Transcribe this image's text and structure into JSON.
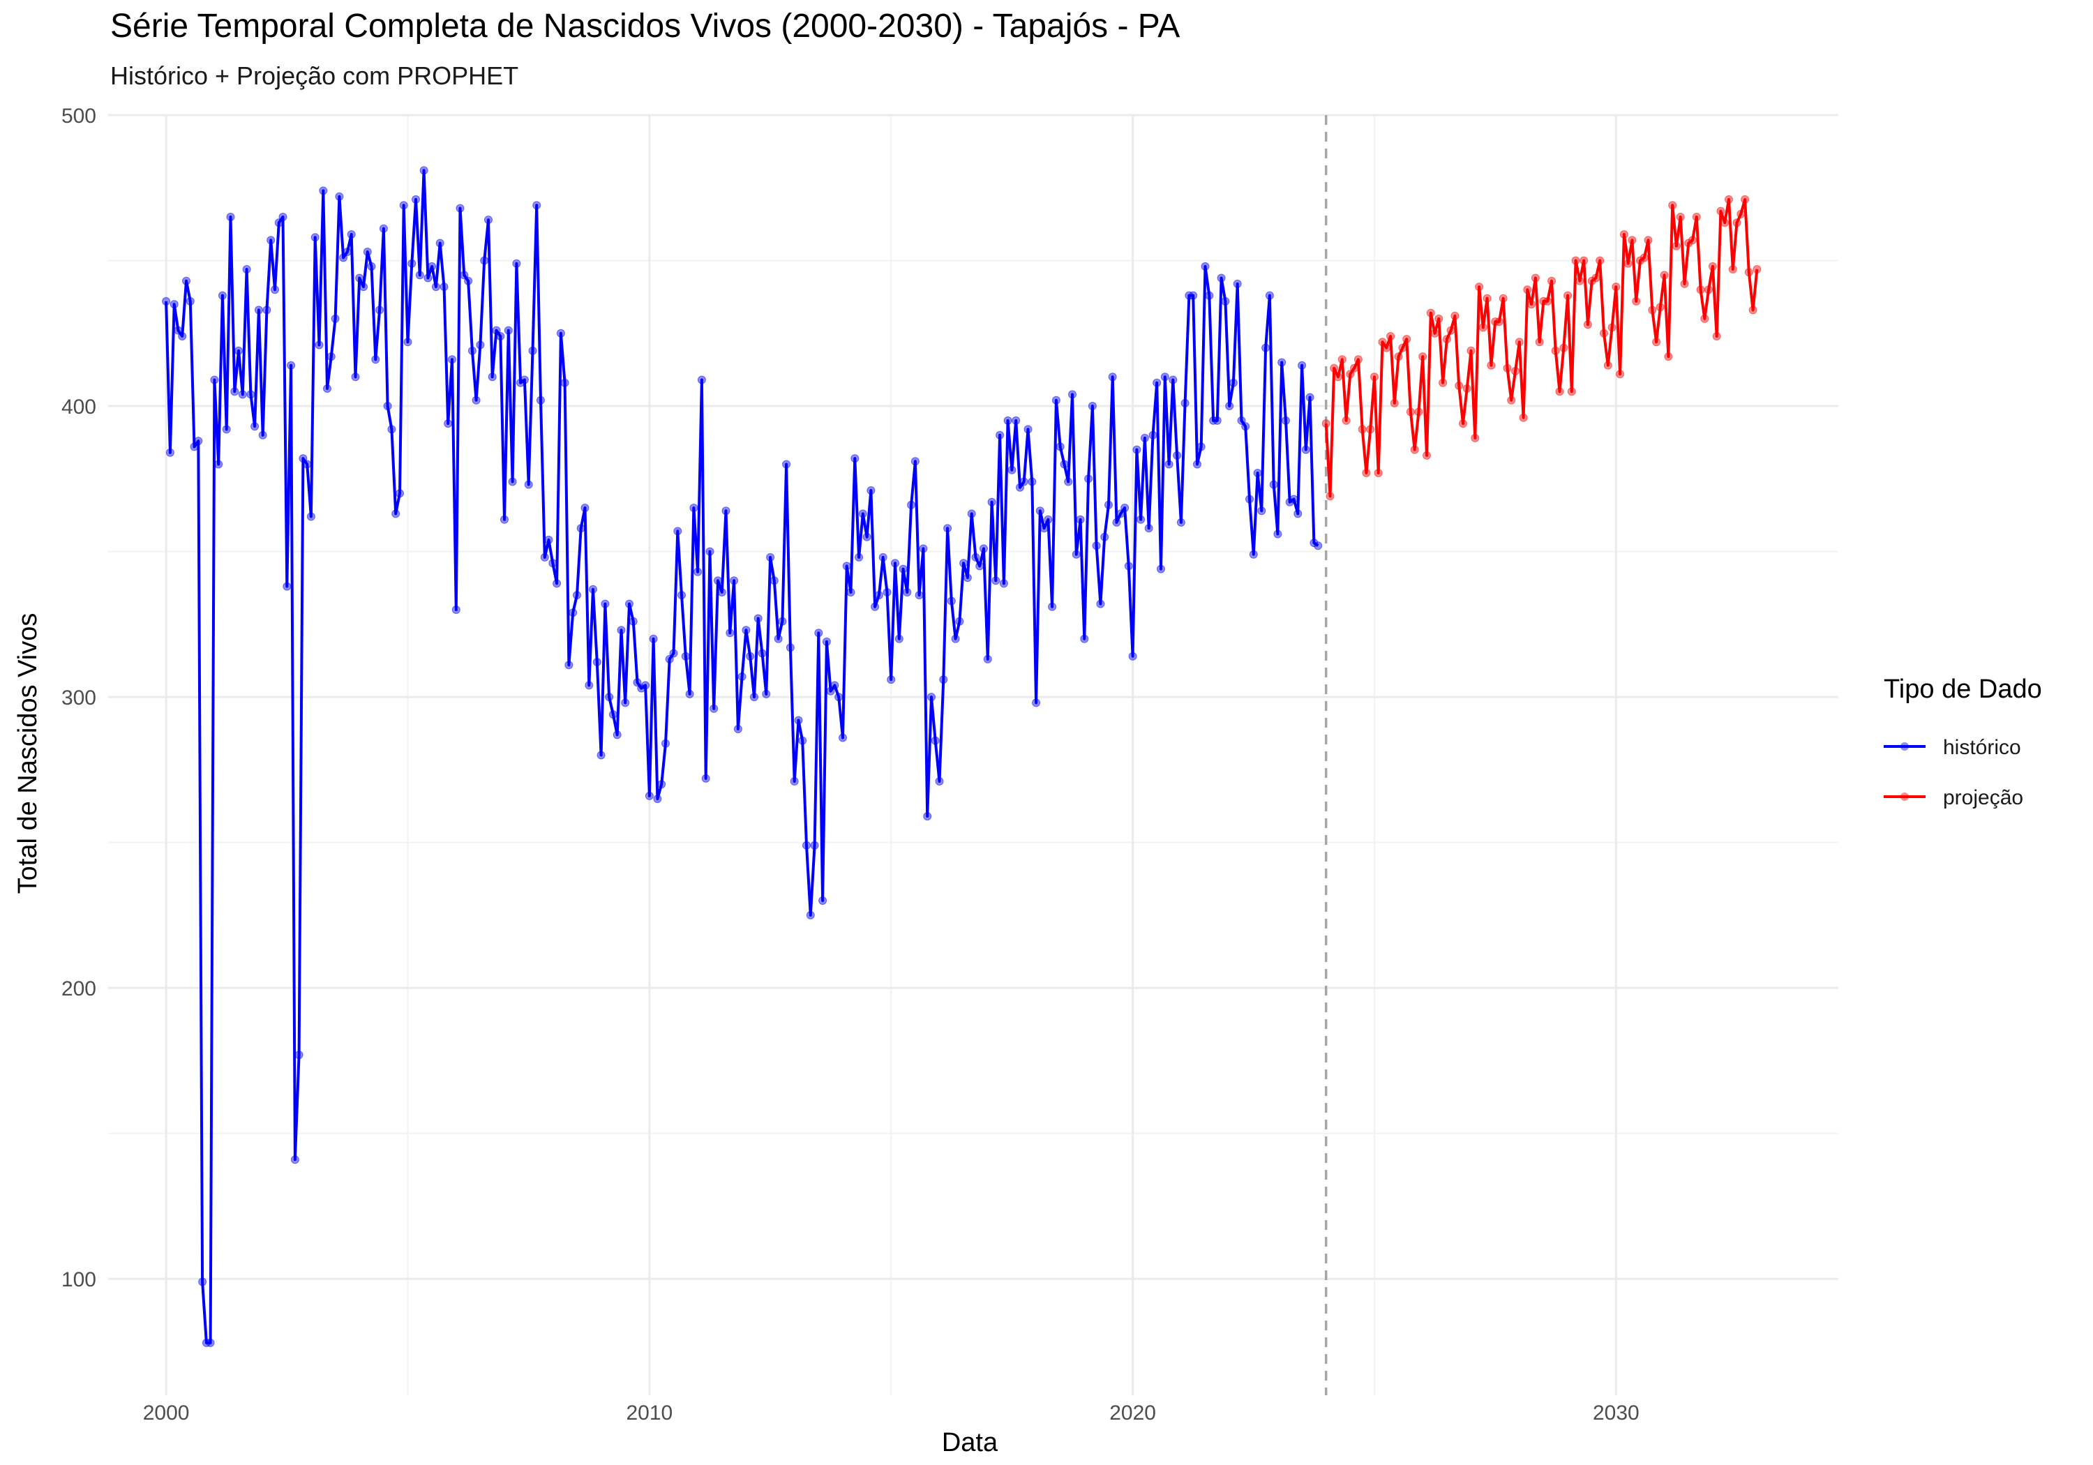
{
  "chart_data": {
    "type": "line",
    "title": "Série Temporal Completa de Nascidos Vivos (2000-2030) -  Tapajós - PA",
    "subtitle": "Histórico + Projeção com PROPHET",
    "xlabel": "Data",
    "ylabel": "Total de Nascidos Vivos",
    "xlim": [
      1998.8,
      2034.6
    ],
    "ylim": [
      60,
      500
    ],
    "x_ticks": [
      2000,
      2010,
      2020,
      2030
    ],
    "y_ticks": [
      100,
      200,
      300,
      400,
      500
    ],
    "grid": true,
    "vline": 2024,
    "legend": {
      "title": "Tipo de Dado",
      "position": "right",
      "items": [
        {
          "label": "histórico",
          "color": "#0000ff"
        },
        {
          "label": "projeção",
          "color": "#ff0000"
        }
      ]
    },
    "series": [
      {
        "name": "histórico",
        "color": "#0000ff",
        "start": "2000-01",
        "values": [
          436,
          384,
          435,
          426,
          424,
          443,
          436,
          386,
          388,
          99,
          78,
          78,
          409,
          380,
          438,
          392,
          465,
          405,
          419,
          404,
          447,
          404,
          393,
          433,
          390,
          433,
          457,
          440,
          463,
          465,
          338,
          414,
          141,
          177,
          382,
          380,
          362,
          458,
          421,
          474,
          406,
          417,
          430,
          472,
          451,
          453,
          459,
          410,
          444,
          441,
          453,
          448,
          416,
          433,
          461,
          400,
          392,
          363,
          370,
          469,
          422,
          449,
          471,
          445,
          481,
          444,
          448,
          441,
          456,
          441,
          394,
          416,
          330,
          468,
          445,
          443,
          419,
          402,
          421,
          450,
          464,
          410,
          426,
          424,
          361,
          426,
          374,
          449,
          408,
          409,
          373,
          419,
          469,
          402,
          348,
          354,
          346,
          339,
          425,
          408,
          311,
          329,
          335,
          358,
          365,
          304,
          337,
          312,
          280,
          332,
          300,
          294,
          287,
          323,
          298,
          332,
          326,
          305,
          303,
          304,
          266,
          320,
          265,
          270,
          284,
          313,
          315,
          357,
          335,
          314,
          301,
          365,
          343,
          409,
          272,
          350,
          296,
          340,
          336,
          364,
          322,
          340,
          289,
          307,
          323,
          314,
          300,
          327,
          315,
          301,
          348,
          340,
          320,
          326,
          380,
          317,
          271,
          292,
          285,
          249,
          225,
          249,
          322,
          230,
          319,
          302,
          304,
          300,
          286,
          345,
          336,
          382,
          348,
          363,
          355,
          371,
          331,
          335,
          348,
          336,
          306,
          346,
          320,
          344,
          336,
          366,
          381,
          335,
          351,
          259,
          300,
          285,
          271,
          306,
          358,
          333,
          320,
          326,
          346,
          341,
          363,
          348,
          345,
          351,
          313,
          367,
          340,
          390,
          339,
          395,
          378,
          395,
          372,
          374,
          392,
          374,
          298,
          364,
          358,
          361,
          331,
          402,
          386,
          380,
          374,
          404,
          349,
          361,
          320,
          375,
          400,
          352,
          332,
          355,
          366,
          410,
          360,
          363,
          365,
          345,
          314,
          385,
          361,
          389,
          358,
          390,
          408,
          344,
          410,
          380,
          409,
          383,
          360,
          401,
          438,
          438,
          380,
          386,
          448,
          438,
          395,
          395,
          444,
          436,
          400,
          408,
          442,
          395,
          393,
          368,
          349,
          377,
          364,
          420,
          438,
          373,
          356,
          415,
          395,
          367,
          368,
          363,
          414,
          385,
          403,
          353,
          352
        ]
      },
      {
        "name": "projeção",
        "color": "#ff0000",
        "start": "2024-01",
        "values": [
          394,
          369,
          413,
          410,
          416,
          395,
          411,
          413,
          416,
          392,
          377,
          392,
          410,
          377,
          422,
          420,
          424,
          401,
          417,
          420,
          423,
          398,
          385,
          398,
          417,
          383,
          432,
          425,
          430,
          408,
          423,
          426,
          431,
          407,
          394,
          406,
          419,
          389,
          441,
          427,
          437,
          414,
          429,
          429,
          437,
          413,
          402,
          412,
          422,
          396,
          440,
          435,
          444,
          422,
          436,
          436,
          443,
          419,
          405,
          420,
          438,
          405,
          450,
          443,
          450,
          428,
          443,
          444,
          450,
          425,
          414,
          427,
          441,
          411,
          459,
          449,
          457,
          436,
          450,
          451,
          457,
          433,
          422,
          434,
          445,
          417,
          469,
          455,
          465,
          442,
          456,
          457,
          465,
          440,
          430,
          440,
          448,
          424,
          467,
          463,
          471,
          447,
          463,
          466,
          471,
          446,
          433,
          447
        ]
      }
    ]
  }
}
